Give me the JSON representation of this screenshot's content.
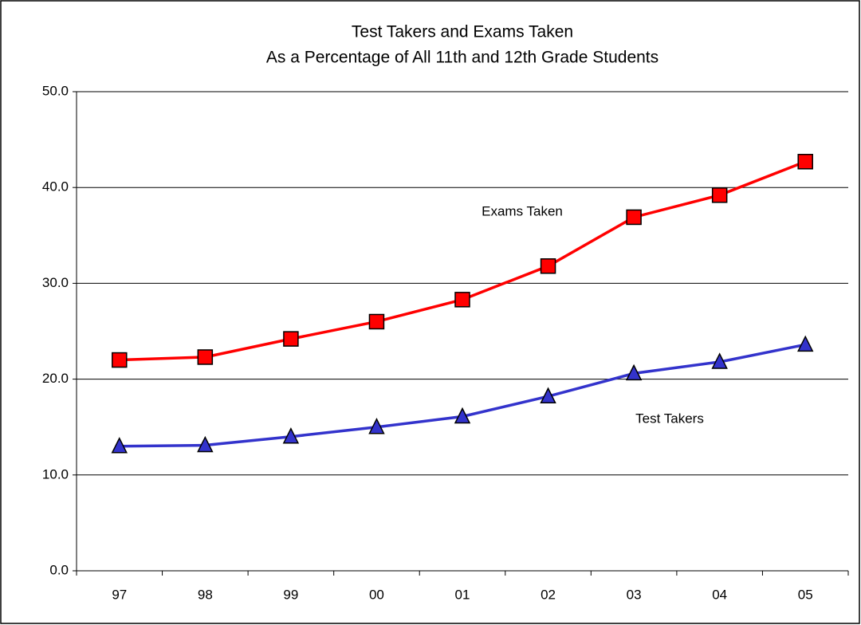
{
  "chart_data": {
    "type": "line",
    "title": "Test Takers and Exams Taken",
    "subtitle": "As a Percentage of All 11th and 12th Grade Students",
    "categories": [
      "97",
      "98",
      "99",
      "00",
      "01",
      "02",
      "03",
      "04",
      "05"
    ],
    "series": [
      {
        "name": "Exams Taken",
        "color": "#ff0000",
        "marker": "square",
        "values": [
          22.0,
          22.3,
          24.2,
          26.0,
          28.3,
          31.8,
          36.9,
          39.2,
          42.7
        ]
      },
      {
        "name": "Test Takers",
        "color": "#3333cc",
        "marker": "triangle",
        "values": [
          13.0,
          13.1,
          14.0,
          15.0,
          16.1,
          18.2,
          20.6,
          21.8,
          23.6
        ]
      }
    ],
    "ylim": [
      0,
      50
    ],
    "yticks": [
      {
        "value": 0,
        "label": "0.0"
      },
      {
        "value": 10,
        "label": "10.0"
      },
      {
        "value": 20,
        "label": "20.0"
      },
      {
        "value": 30,
        "label": "30.0"
      },
      {
        "value": 40,
        "label": "40.0"
      },
      {
        "value": 50,
        "label": "50.0"
      }
    ],
    "grid": true
  }
}
